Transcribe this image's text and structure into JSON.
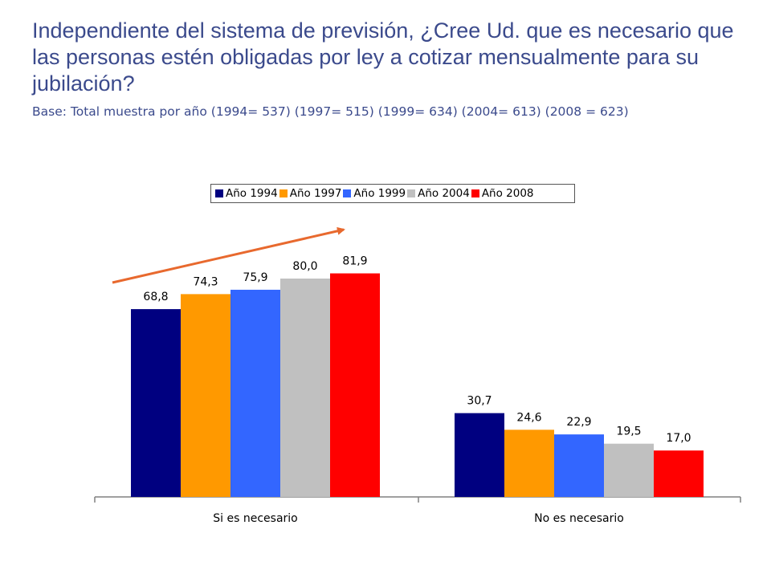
{
  "header": {
    "title": "Independiente del sistema de previsión, ¿Cree Ud. que es necesario que las personas estén obligadas por ley a cotizar mensualmente para su jubilación?",
    "subtitle": "Base: Total muestra por año  (1994= 537) (1997= 515) (1999= 634) (2004= 613) (2008 = 623)"
  },
  "chart_data": {
    "type": "bar",
    "categories": [
      "Si es necesario",
      "No es necesario"
    ],
    "series": [
      {
        "name": "Año 1994",
        "color": "#000080",
        "values": [
          68.8,
          30.7
        ],
        "labels": [
          "68,8",
          "30,7"
        ]
      },
      {
        "name": "Año 1997",
        "color": "#ff9900",
        "values": [
          74.3,
          24.6
        ],
        "labels": [
          "74,3",
          "24,6"
        ]
      },
      {
        "name": "Año 1999",
        "color": "#3366ff",
        "values": [
          75.9,
          22.9
        ],
        "labels": [
          "75,9",
          "22,9"
        ]
      },
      {
        "name": "Año 2004",
        "color": "#c0c0c0",
        "values": [
          80.0,
          19.5
        ],
        "labels": [
          "80,0",
          "19,5"
        ]
      },
      {
        "name": "Año 2008",
        "color": "#ff0000",
        "values": [
          81.9,
          17.0
        ],
        "labels": [
          "81,9",
          "17,0"
        ]
      }
    ],
    "ylim": [
      0,
      100
    ],
    "legend_position": "top-center",
    "grid": false,
    "annotation": {
      "type": "trend-arrow",
      "color": "#e8692e",
      "category": "Si es necesario"
    }
  }
}
